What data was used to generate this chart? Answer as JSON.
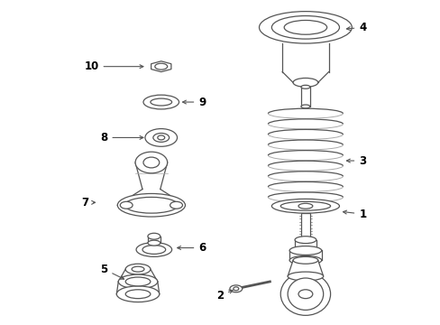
{
  "background_color": "#ffffff",
  "line_color": "#555555",
  "fig_width": 4.89,
  "fig_height": 3.6,
  "dpi": 100
}
